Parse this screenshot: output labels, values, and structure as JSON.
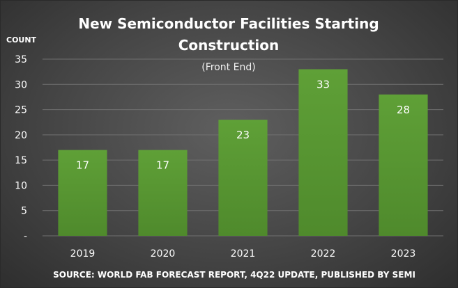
{
  "chart_data": {
    "type": "bar",
    "title_lines": [
      "New Semiconductor Facilities Starting",
      "Construction"
    ],
    "subtitle": "(Front End)",
    "ylabel": "COUNT",
    "xlabel": "",
    "categories": [
      "2019",
      "2020",
      "2021",
      "2022",
      "2023"
    ],
    "values": [
      17,
      17,
      23,
      33,
      28
    ],
    "ylim": [
      0,
      35
    ],
    "yticks": [
      0,
      5,
      10,
      15,
      20,
      25,
      30,
      35
    ],
    "ytick_labels": [
      "-",
      "5",
      "10",
      "15",
      "20",
      "25",
      "30",
      "35"
    ],
    "grid": true,
    "legend": "none",
    "bar_color": "#5b9a35",
    "source": "SOURCE: WORLD FAB FORECAST REPORT, 4Q22 UPDATE, PUBLISHED BY SEMI"
  }
}
